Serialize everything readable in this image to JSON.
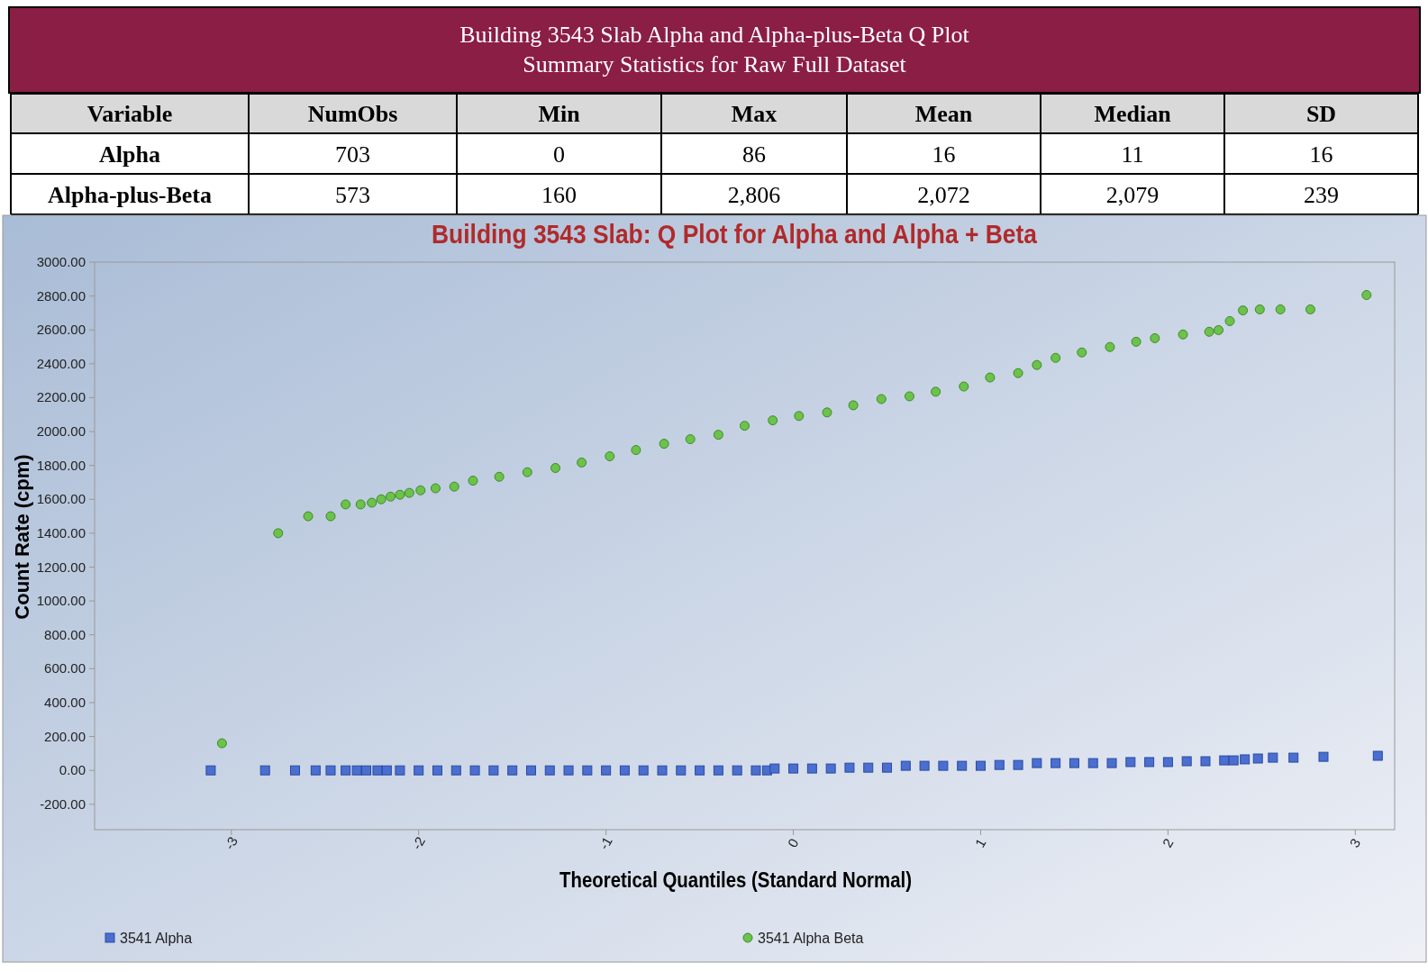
{
  "chart_data": [
    {
      "type": "other",
      "title": "Building 3543 Slab Alpha and Alpha-plus-Beta Q Plot",
      "subtitle": "Summary Statistics for Raw Full Dataset",
      "categories": [
        "Variable",
        "NumObs",
        "Min",
        "Max",
        "Mean",
        "Median",
        "SD"
      ],
      "y_categories": [
        "Alpha",
        "Alpha-plus-Beta"
      ],
      "cell_labels": [
        [
          "703",
          "0",
          "86",
          "16",
          "11",
          "16"
        ],
        [
          "573",
          "160",
          "2,806",
          "2,072",
          "2,079",
          "239"
        ]
      ]
    },
    {
      "type": "scatter",
      "title": "Building 3543 Slab: Q Plot for Alpha and Alpha + Beta",
      "xlabel": "Theoretical Quantiles (Standard Normal)",
      "ylabel": "Count Rate (cpm)",
      "xlim": [
        -3.73,
        3.21
      ],
      "ylim": [
        -350,
        3000
      ],
      "xticks": [
        {
          "value": -3,
          "label": "-3"
        },
        {
          "value": -2,
          "label": "-2"
        },
        {
          "value": -1,
          "label": "-1"
        },
        0,
        1,
        2,
        3
      ],
      "yticks": [
        {
          "value": -200,
          "label": "-200.00"
        },
        {
          "value": 0,
          "label": "0.00"
        },
        {
          "value": 200,
          "label": "200.00"
        },
        {
          "value": 400,
          "label": "400.00"
        },
        {
          "value": 600,
          "label": "600.00"
        },
        {
          "value": 800,
          "label": "800.00"
        },
        {
          "value": 1000,
          "label": "1000.00"
        },
        {
          "value": 1200,
          "label": "1200.00"
        },
        {
          "value": 1400,
          "label": "1400.00"
        },
        {
          "value": 1600,
          "label": "1600.00"
        },
        {
          "value": 1800,
          "label": "1800.00"
        },
        {
          "value": 2000,
          "label": "2000.00"
        },
        {
          "value": 2200,
          "label": "2200.00"
        },
        {
          "value": 2400,
          "label": "2400.00"
        },
        {
          "value": 2600,
          "label": "2600.00"
        },
        {
          "value": 2800,
          "label": "2800.00"
        },
        {
          "value": 3000,
          "label": "3000.00"
        }
      ],
      "legend": "bottom",
      "grid": false,
      "series": [
        {
          "name": "3541 Alpha",
          "color": "#4a6fd0",
          "marker": "square",
          "x": [
            -3.11,
            -2.82,
            -2.66,
            -2.55,
            -2.47,
            -2.39,
            -2.33,
            -2.28,
            -2.22,
            -2.17,
            -2.1,
            -2.0,
            -1.9,
            -1.8,
            -1.7,
            -1.6,
            -1.5,
            -1.4,
            -1.3,
            -1.2,
            -1.1,
            -1.0,
            -0.9,
            -0.8,
            -0.7,
            -0.6,
            -0.5,
            -0.4,
            -0.3,
            -0.2,
            -0.14,
            -0.1,
            0.0,
            0.1,
            0.2,
            0.3,
            0.4,
            0.5,
            0.6,
            0.7,
            0.8,
            0.9,
            1.0,
            1.1,
            1.2,
            1.3,
            1.4,
            1.5,
            1.6,
            1.7,
            1.8,
            1.9,
            2.0,
            2.1,
            2.2,
            2.3,
            2.35,
            2.41,
            2.48,
            2.56,
            2.67,
            2.83,
            3.12
          ],
          "values": [
            0,
            0,
            0,
            0,
            0,
            0,
            0,
            0,
            0,
            0,
            0,
            0,
            0,
            0,
            0,
            0,
            0,
            0,
            0,
            0,
            0,
            0,
            0,
            0,
            0,
            0,
            0,
            0,
            0,
            0,
            0,
            11,
            11,
            11,
            11,
            16,
            16,
            16,
            27,
            27,
            27,
            27,
            27,
            32,
            32,
            43,
            43,
            43,
            43,
            43,
            49,
            49,
            49,
            54,
            54,
            59,
            59,
            65,
            70,
            75,
            75,
            80,
            86
          ]
        },
        {
          "name": "3541 Alpha Beta",
          "color": "#6cc24a",
          "marker": "circle",
          "x": [
            -3.05,
            -2.75,
            -2.59,
            -2.47,
            -2.39,
            -2.31,
            -2.25,
            -2.2,
            -2.15,
            -2.1,
            -2.05,
            -1.99,
            -1.91,
            -1.81,
            -1.71,
            -1.57,
            -1.42,
            -1.27,
            -1.13,
            -0.98,
            -0.84,
            -0.69,
            -0.55,
            -0.4,
            -0.26,
            -0.11,
            0.03,
            0.18,
            0.32,
            0.47,
            0.62,
            0.76,
            0.91,
            1.05,
            1.2,
            1.3,
            1.4,
            1.54,
            1.69,
            1.83,
            1.93,
            2.08,
            2.22,
            2.27,
            2.33,
            2.4,
            2.49,
            2.6,
            2.76,
            3.06
          ],
          "values": [
            160,
            1400,
            1500,
            1500,
            1570,
            1570,
            1580,
            1600,
            1616,
            1627,
            1638,
            1653,
            1665,
            1675,
            1710,
            1733,
            1760,
            1785,
            1817,
            1854,
            1891,
            1928,
            1955,
            1981,
            2034,
            2066,
            2092,
            2113,
            2155,
            2192,
            2208,
            2235,
            2266,
            2319,
            2345,
            2393,
            2435,
            2467,
            2499,
            2530,
            2551,
            2573,
            2589,
            2599,
            2652,
            2715,
            2721,
            2721,
            2721,
            2806
          ]
        }
      ]
    }
  ]
}
